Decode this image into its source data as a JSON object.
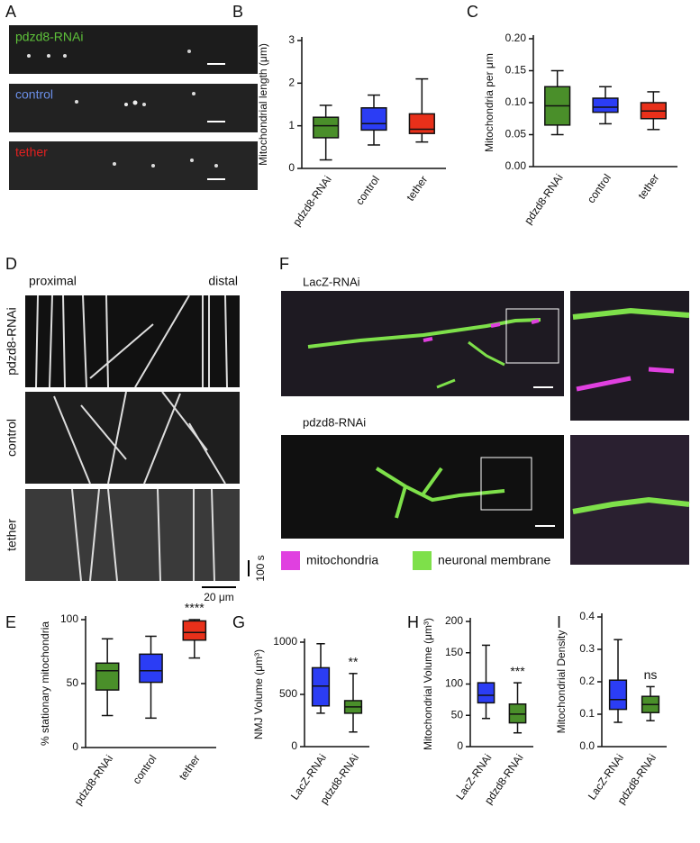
{
  "figure": {
    "panels": [
      "A",
      "B",
      "C",
      "D",
      "E",
      "F",
      "G",
      "H",
      "I"
    ],
    "a_labels": [
      "pdzd8-RNAi",
      "control",
      "tether"
    ],
    "d_proximal": "proximal",
    "d_distal": "distal",
    "d_rows": [
      "pdzd8-RNAi",
      "control",
      "tether"
    ],
    "d_time_scale": "100 s",
    "d_space_scale": "20 μm",
    "f_labels": [
      "LacZ-RNAi",
      "pdzd8-RNAi"
    ],
    "f_legend": [
      "mitochondria",
      "neuronal membrane"
    ]
  },
  "chart_data": [
    {
      "type": "box",
      "ylabel": "Mitochondrial length (μm)",
      "categories": [
        "pdzd8-RNAi",
        "control",
        "tether"
      ],
      "colors": [
        "#4a8f2a",
        "#2b3df5",
        "#e8301a"
      ],
      "ylim": [
        0,
        3
      ],
      "yticks": [
        0,
        1,
        2,
        3
      ],
      "boxes": [
        {
          "min": 0.2,
          "q1": 0.72,
          "median": 1.0,
          "q3": 1.2,
          "max": 1.48
        },
        {
          "min": 0.55,
          "q1": 0.9,
          "median": 1.05,
          "q3": 1.42,
          "max": 1.72
        },
        {
          "min": 0.62,
          "q1": 0.82,
          "median": 0.92,
          "q3": 1.28,
          "max": 2.1
        }
      ]
    },
    {
      "type": "box",
      "ylabel": "Mitochondria per μm",
      "categories": [
        "pdzd8-RNAi",
        "control",
        "tether"
      ],
      "colors": [
        "#4a8f2a",
        "#2b3df5",
        "#e8301a"
      ],
      "ylim": [
        0,
        0.2
      ],
      "yticks": [
        {
          "value": 0,
          "label": "0.00"
        },
        {
          "value": 0.05,
          "label": "0.05"
        },
        {
          "value": 0.1,
          "label": "0.10"
        },
        {
          "value": 0.15,
          "label": "0.15"
        },
        {
          "value": 0.2,
          "label": "0.20"
        }
      ],
      "boxes": [
        {
          "min": 0.05,
          "q1": 0.065,
          "median": 0.095,
          "q3": 0.125,
          "max": 0.15
        },
        {
          "min": 0.067,
          "q1": 0.085,
          "median": 0.093,
          "q3": 0.107,
          "max": 0.125
        },
        {
          "min": 0.058,
          "q1": 0.075,
          "median": 0.087,
          "q3": 0.1,
          "max": 0.117
        }
      ]
    },
    {
      "type": "box",
      "ylabel": "% stationary mitochondria",
      "categories": [
        "pdzd8-RNAi",
        "control",
        "tether"
      ],
      "colors": [
        "#4a8f2a",
        "#2b3df5",
        "#e8301a"
      ],
      "ylim": [
        0,
        100
      ],
      "yticks": [
        0,
        50,
        100
      ],
      "boxes": [
        {
          "min": 25,
          "q1": 45,
          "median": 60,
          "q3": 66,
          "max": 85
        },
        {
          "min": 23,
          "q1": 51,
          "median": 60,
          "q3": 73,
          "max": 87
        },
        {
          "min": 70,
          "q1": 84,
          "median": 90,
          "q3": 99,
          "max": 100,
          "label": "****"
        }
      ]
    },
    {
      "type": "box",
      "ylabel": "NMJ Volume (μm³)",
      "categories": [
        "LacZ-RNAi",
        "pdzd8-RNAi"
      ],
      "colors": [
        "#2b3df5",
        "#4a8f2a"
      ],
      "ylim": [
        0,
        1000
      ],
      "yticks": [
        0,
        500,
        1000
      ],
      "boxes": [
        {
          "min": 320,
          "q1": 390,
          "median": 580,
          "q3": 755,
          "max": 985
        },
        {
          "min": 140,
          "q1": 320,
          "median": 380,
          "q3": 440,
          "max": 700,
          "label": "**"
        }
      ]
    },
    {
      "type": "box",
      "ylabel": "Mitochondrial Volume (μm³)",
      "categories": [
        "LacZ-RNAi",
        "pdzd8-RNAi"
      ],
      "colors": [
        "#2b3df5",
        "#4a8f2a"
      ],
      "ylim": [
        0,
        200
      ],
      "yticks": [
        0,
        50,
        100,
        150,
        200
      ],
      "boxes": [
        {
          "min": 45,
          "q1": 70,
          "median": 82,
          "q3": 102,
          "max": 162
        },
        {
          "min": 22,
          "q1": 38,
          "median": 52,
          "q3": 68,
          "max": 102,
          "label": "***"
        }
      ]
    },
    {
      "type": "box",
      "ylabel": "Mitochondrial Density",
      "categories": [
        "LacZ-RNAi",
        "pdzd8-RNAi"
      ],
      "colors": [
        "#2b3df5",
        "#4a8f2a"
      ],
      "ylim": [
        0,
        0.4
      ],
      "yticks": [
        {
          "value": 0,
          "label": "0.0"
        },
        0.1,
        0.2,
        0.3,
        0.4
      ],
      "boxes": [
        {
          "min": 0.075,
          "q1": 0.115,
          "median": 0.145,
          "q3": 0.205,
          "max": 0.33
        },
        {
          "min": 0.08,
          "q1": 0.105,
          "median": 0.13,
          "q3": 0.155,
          "max": 0.185,
          "label": "ns"
        }
      ]
    }
  ]
}
